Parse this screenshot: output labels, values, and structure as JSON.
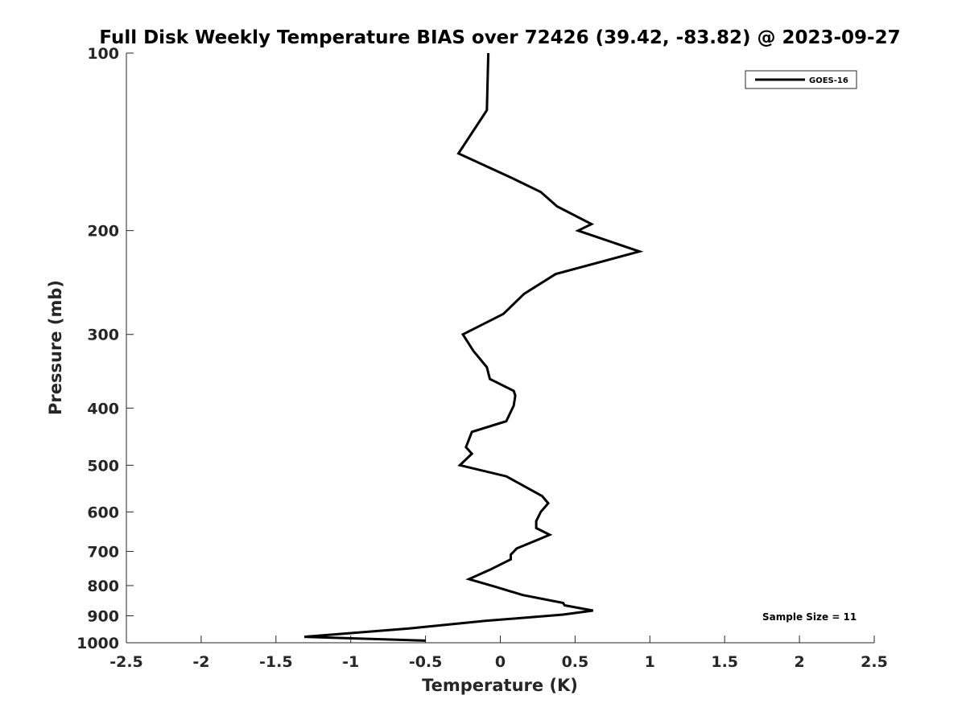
{
  "chart_data": {
    "type": "line",
    "title": "Full Disk Weekly Temperature BIAS over 72426 (39.42, -83.82) @ 2023-09-27",
    "xlabel": "Temperature (K)",
    "ylabel": "Pressure (mb)",
    "xlim": [
      -2.5,
      2.5
    ],
    "ylim": [
      100,
      1000
    ],
    "y_scale": "log",
    "y_reversed": true,
    "grid": false,
    "legend_position": "top-right",
    "x_ticks": [
      "-2.5",
      "-2",
      "-1.5",
      "-1",
      "-0.5",
      "0",
      "0.5",
      "1",
      "1.5",
      "2",
      "2.5"
    ],
    "y_ticks": [
      "100",
      "200",
      "300",
      "400",
      "500",
      "600",
      "700",
      "800",
      "900",
      "1000"
    ],
    "series": [
      {
        "name": "GOES-16",
        "color": "#000000",
        "points": [
          {
            "x": -0.08,
            "y": 100
          },
          {
            "x": -0.09,
            "y": 125
          },
          {
            "x": -0.28,
            "y": 148
          },
          {
            "x": 0.08,
            "y": 163
          },
          {
            "x": 0.27,
            "y": 172
          },
          {
            "x": 0.38,
            "y": 182
          },
          {
            "x": 0.61,
            "y": 195
          },
          {
            "x": 0.52,
            "y": 200
          },
          {
            "x": 0.93,
            "y": 217
          },
          {
            "x": 0.37,
            "y": 237
          },
          {
            "x": 0.16,
            "y": 256
          },
          {
            "x": 0.02,
            "y": 277
          },
          {
            "x": -0.25,
            "y": 300
          },
          {
            "x": -0.18,
            "y": 320
          },
          {
            "x": -0.09,
            "y": 341
          },
          {
            "x": -0.07,
            "y": 357
          },
          {
            "x": 0.09,
            "y": 374
          },
          {
            "x": 0.1,
            "y": 381
          },
          {
            "x": 0.09,
            "y": 396
          },
          {
            "x": 0.04,
            "y": 421
          },
          {
            "x": -0.19,
            "y": 439
          },
          {
            "x": -0.23,
            "y": 466
          },
          {
            "x": -0.19,
            "y": 478
          },
          {
            "x": -0.27,
            "y": 500
          },
          {
            "x": 0.04,
            "y": 522
          },
          {
            "x": 0.28,
            "y": 564
          },
          {
            "x": 0.32,
            "y": 580
          },
          {
            "x": 0.27,
            "y": 600
          },
          {
            "x": 0.24,
            "y": 622
          },
          {
            "x": 0.24,
            "y": 639
          },
          {
            "x": 0.33,
            "y": 656
          },
          {
            "x": 0.25,
            "y": 669
          },
          {
            "x": 0.11,
            "y": 692
          },
          {
            "x": 0.07,
            "y": 709
          },
          {
            "x": 0.07,
            "y": 722
          },
          {
            "x": -0.07,
            "y": 752
          },
          {
            "x": -0.21,
            "y": 780
          },
          {
            "x": -0.03,
            "y": 804
          },
          {
            "x": 0.15,
            "y": 830
          },
          {
            "x": 0.42,
            "y": 856
          },
          {
            "x": 0.43,
            "y": 864
          },
          {
            "x": 0.62,
            "y": 882
          },
          {
            "x": 0.42,
            "y": 896
          },
          {
            "x": -0.1,
            "y": 918
          },
          {
            "x": -0.61,
            "y": 946
          },
          {
            "x": -1.31,
            "y": 977
          },
          {
            "x": -0.5,
            "y": 992
          }
        ]
      }
    ],
    "annotation": "Sample Size = 11"
  }
}
